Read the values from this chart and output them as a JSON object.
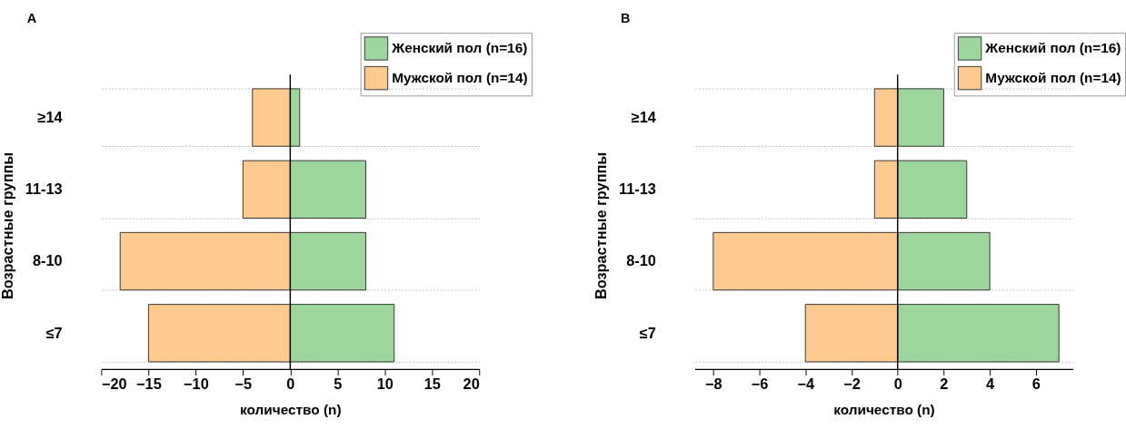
{
  "chart_data": [
    {
      "type": "bar",
      "orientation": "horizontal",
      "annotations": [
        "A"
      ],
      "xlabel": "количество (n)",
      "ylabel": "Возрастные группы",
      "categories": [
        "≥14",
        "11-13",
        "8-10",
        "≤7"
      ],
      "series": [
        {
          "name": "Женский пол (n=16)",
          "color": "#9dd69c",
          "values": [
            1,
            8,
            8,
            11
          ]
        },
        {
          "name": "Мужской пол (n=14)",
          "color": "#fdc98f",
          "values": [
            -4,
            -5,
            -18,
            -15
          ]
        }
      ],
      "xlim": [
        -20,
        20
      ],
      "xticks": [
        -20,
        -15,
        -10,
        -5,
        0,
        5,
        10,
        15,
        20
      ],
      "grid": "y",
      "legend": "top right",
      "stacked": true
    },
    {
      "type": "bar",
      "orientation": "horizontal",
      "annotations": [
        "B"
      ],
      "xlabel": "количество (n)",
      "ylabel": "Возрастные группы",
      "categories": [
        "≥14",
        "11-13",
        "8-10",
        "≤7"
      ],
      "series": [
        {
          "name": "Женский пол (n=16)",
          "color": "#9dd69c",
          "values": [
            2,
            3,
            4,
            7
          ]
        },
        {
          "name": "Мужской пол (n=14)",
          "color": "#fdc98f",
          "values": [
            -1,
            -1,
            -8,
            -4
          ]
        }
      ],
      "xlim": [
        -8.8,
        7.6
      ],
      "xticks": [
        -8,
        -6,
        -4,
        -2,
        0,
        2,
        4,
        6
      ],
      "grid": "y",
      "legend": "top right",
      "stacked": true
    }
  ]
}
